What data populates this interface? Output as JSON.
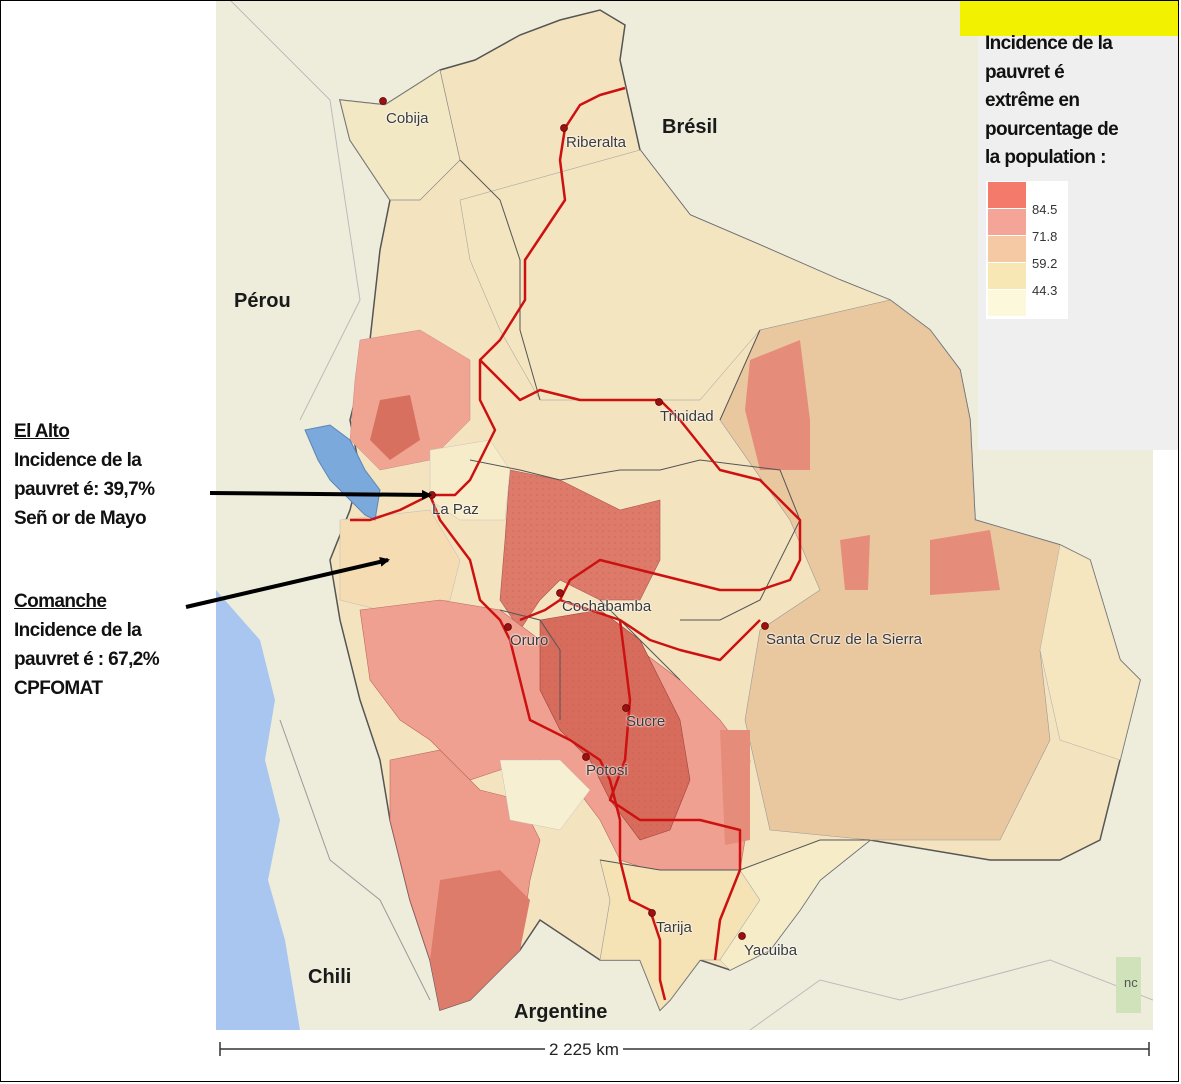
{
  "legend": {
    "title_lines": [
      "Incidence de la",
      "pauvret é",
      "extrême en",
      "pourcentage de",
      "la population :"
    ],
    "classes": [
      {
        "color": "#f47a6b",
        "label": ""
      },
      {
        "color": "#f4a597",
        "label": "84.5"
      },
      {
        "color": "#f5c9a4",
        "label": "71.8"
      },
      {
        "color": "#f6e7b5",
        "label": "59.2"
      },
      {
        "color": "#fbf8dc",
        "label": "44.3"
      }
    ]
  },
  "countries": {
    "bresil": "Brésil",
    "perou": "Pérou",
    "chili": "Chili",
    "argentine": "Argentine"
  },
  "cities": {
    "cobija": "Cobija",
    "riberalta": "Riberalta",
    "trinidad": "Trinidad",
    "la_paz": "La Paz",
    "cochabamba": "Cochabamba",
    "oruro": "Oruro",
    "santa_cruz": "Santa Cruz de la Sierra",
    "sucre": "Sucre",
    "potosi": "Potosi",
    "tarija": "Tarija",
    "yacuiba": "Yacuiba"
  },
  "annotations": {
    "el_alto": {
      "name": "El Alto ",
      "line1": "Incidence de la",
      "line2": "pauvret é: 39,7%",
      "line3": "Señ or de Mayo"
    },
    "comanche": {
      "name": "Comanche ",
      "line1": "Incidence de la",
      "line2": "pauvret é : 67,2%",
      "line3": "CPFOMAT"
    }
  },
  "scale": {
    "label": "2 225 km"
  },
  "map_tools": {
    "corner_label": "nc"
  },
  "colors": {
    "road": "#cc1111",
    "lake": "#7ba9dc",
    "ocean": "#a9c6f0",
    "land": "#eeeddc",
    "border": "#555555"
  }
}
